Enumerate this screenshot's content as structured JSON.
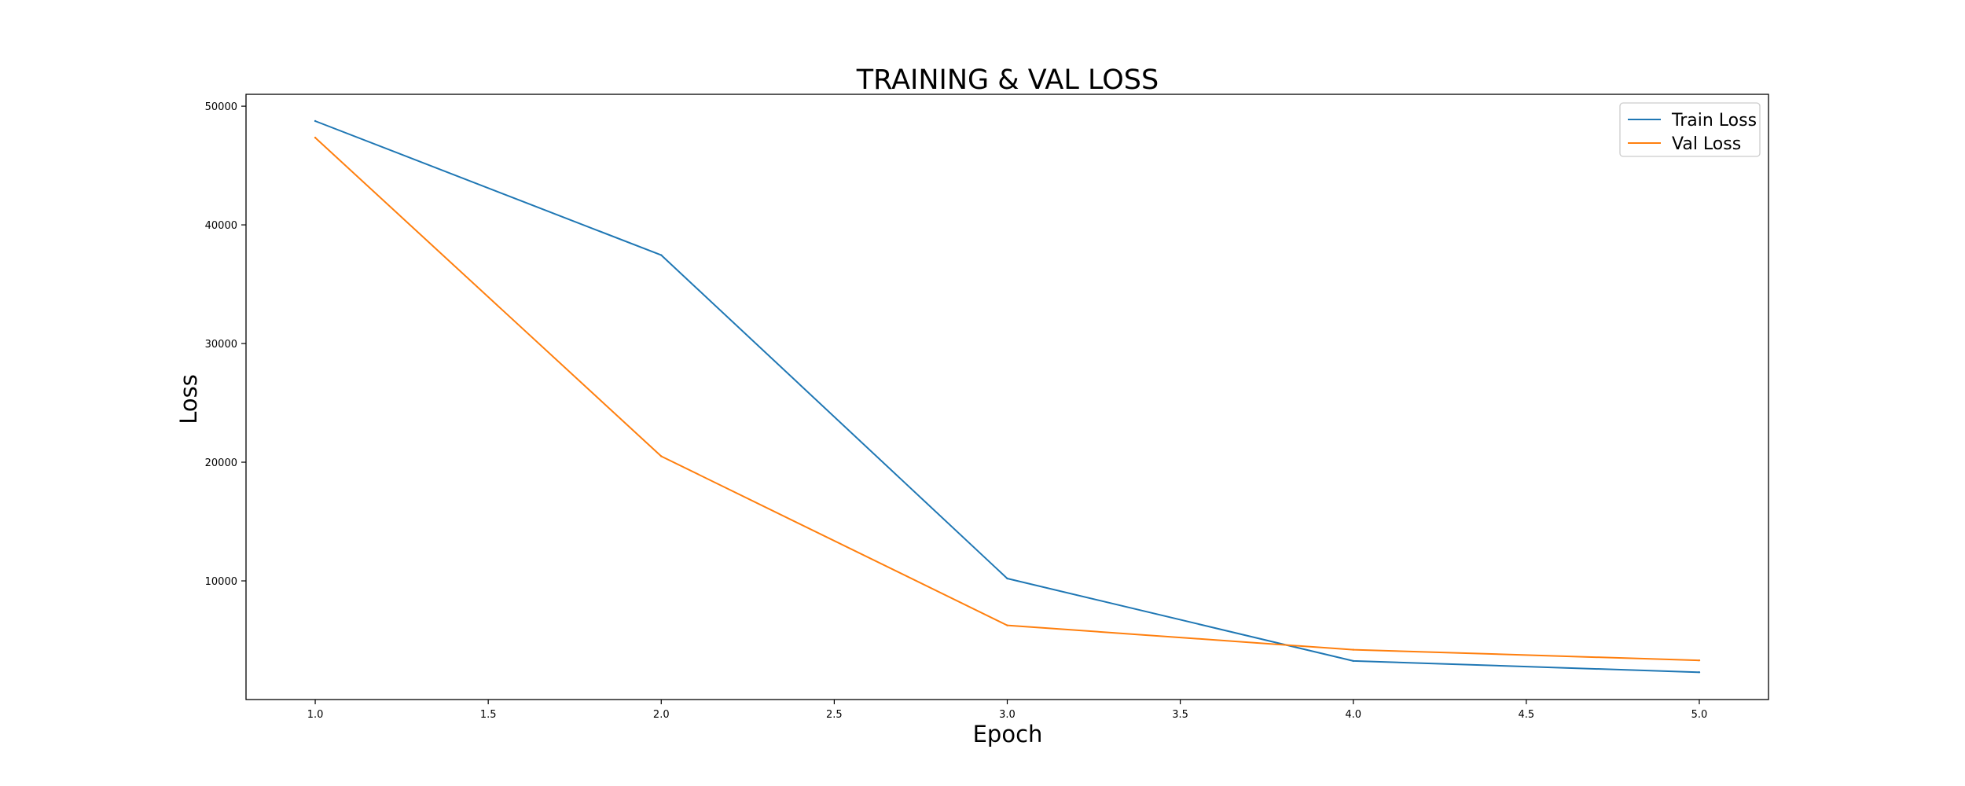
{
  "chart_data": {
    "type": "line",
    "title": "TRAINING & VAL LOSS",
    "xlabel": "Epoch",
    "ylabel": "Loss",
    "x": [
      1.0,
      2.0,
      3.0,
      4.0,
      5.0
    ],
    "series": [
      {
        "name": "Train Loss",
        "color": "#1f77b4",
        "values": [
          48750,
          37450,
          10200,
          3250,
          2300
        ]
      },
      {
        "name": "Val Loss",
        "color": "#ff7f0e",
        "values": [
          47350,
          20500,
          6250,
          4200,
          3300
        ]
      }
    ],
    "xlim": [
      0.8,
      5.2
    ],
    "ylim": [
      0,
      51000
    ],
    "x_ticks": [
      1.0,
      1.5,
      2.0,
      2.5,
      3.0,
      3.5,
      4.0,
      4.5,
      5.0
    ],
    "x_tick_labels": [
      "1.0",
      "1.5",
      "2.0",
      "2.5",
      "3.0",
      "3.5",
      "4.0",
      "4.5",
      "5.0"
    ],
    "y_ticks": [
      10000,
      20000,
      30000,
      40000,
      50000
    ],
    "y_tick_labels": [
      "10000",
      "20000",
      "30000",
      "40000",
      "50000"
    ],
    "grid": false,
    "legend_position": "top-right"
  }
}
